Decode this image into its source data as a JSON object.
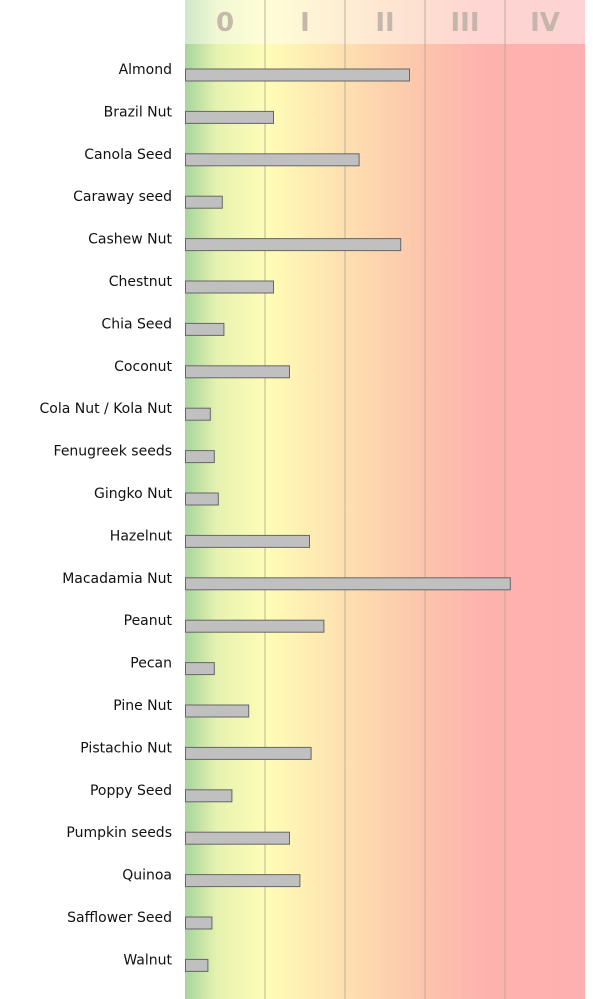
{
  "chart_data": {
    "type": "bar",
    "orientation": "horizontal",
    "title": "",
    "xlabel": "",
    "ylabel": "",
    "header_labels": [
      "0",
      "I",
      "II",
      "III",
      "IV"
    ],
    "xlim": [
      0,
      5
    ],
    "grid": true,
    "background": "gradient zones green-yellow-orange-red",
    "zone_colors": [
      "#a9d8a0",
      "#fbfcb8",
      "#fcdcb0",
      "#fdbfae",
      "#feb0b0"
    ],
    "bar_color": "#c0c0c0",
    "bar_stroke": "#666666",
    "categories": [
      "Almond",
      "Brazil Nut",
      "Canola Seed",
      "Caraway seed",
      "Cashew Nut",
      "Chestnut",
      "Chia Seed",
      "Coconut",
      "Cola Nut / Kola Nut",
      "Fenugreek seeds",
      "Gingko Nut",
      "Hazelnut",
      "Macadamia Nut",
      "Peanut",
      "Pecan",
      "Pine Nut",
      "Pistachio Nut",
      "Poppy Seed",
      "Pumpkin seeds",
      "Quinoa",
      "Safflower Seed",
      "Walnut"
    ],
    "values": [
      2.8,
      1.1,
      2.17,
      0.46,
      2.69,
      1.1,
      0.48,
      1.3,
      0.31,
      0.36,
      0.41,
      1.55,
      4.06,
      1.73,
      0.36,
      0.79,
      1.57,
      0.58,
      1.3,
      1.43,
      0.33,
      0.28
    ]
  }
}
